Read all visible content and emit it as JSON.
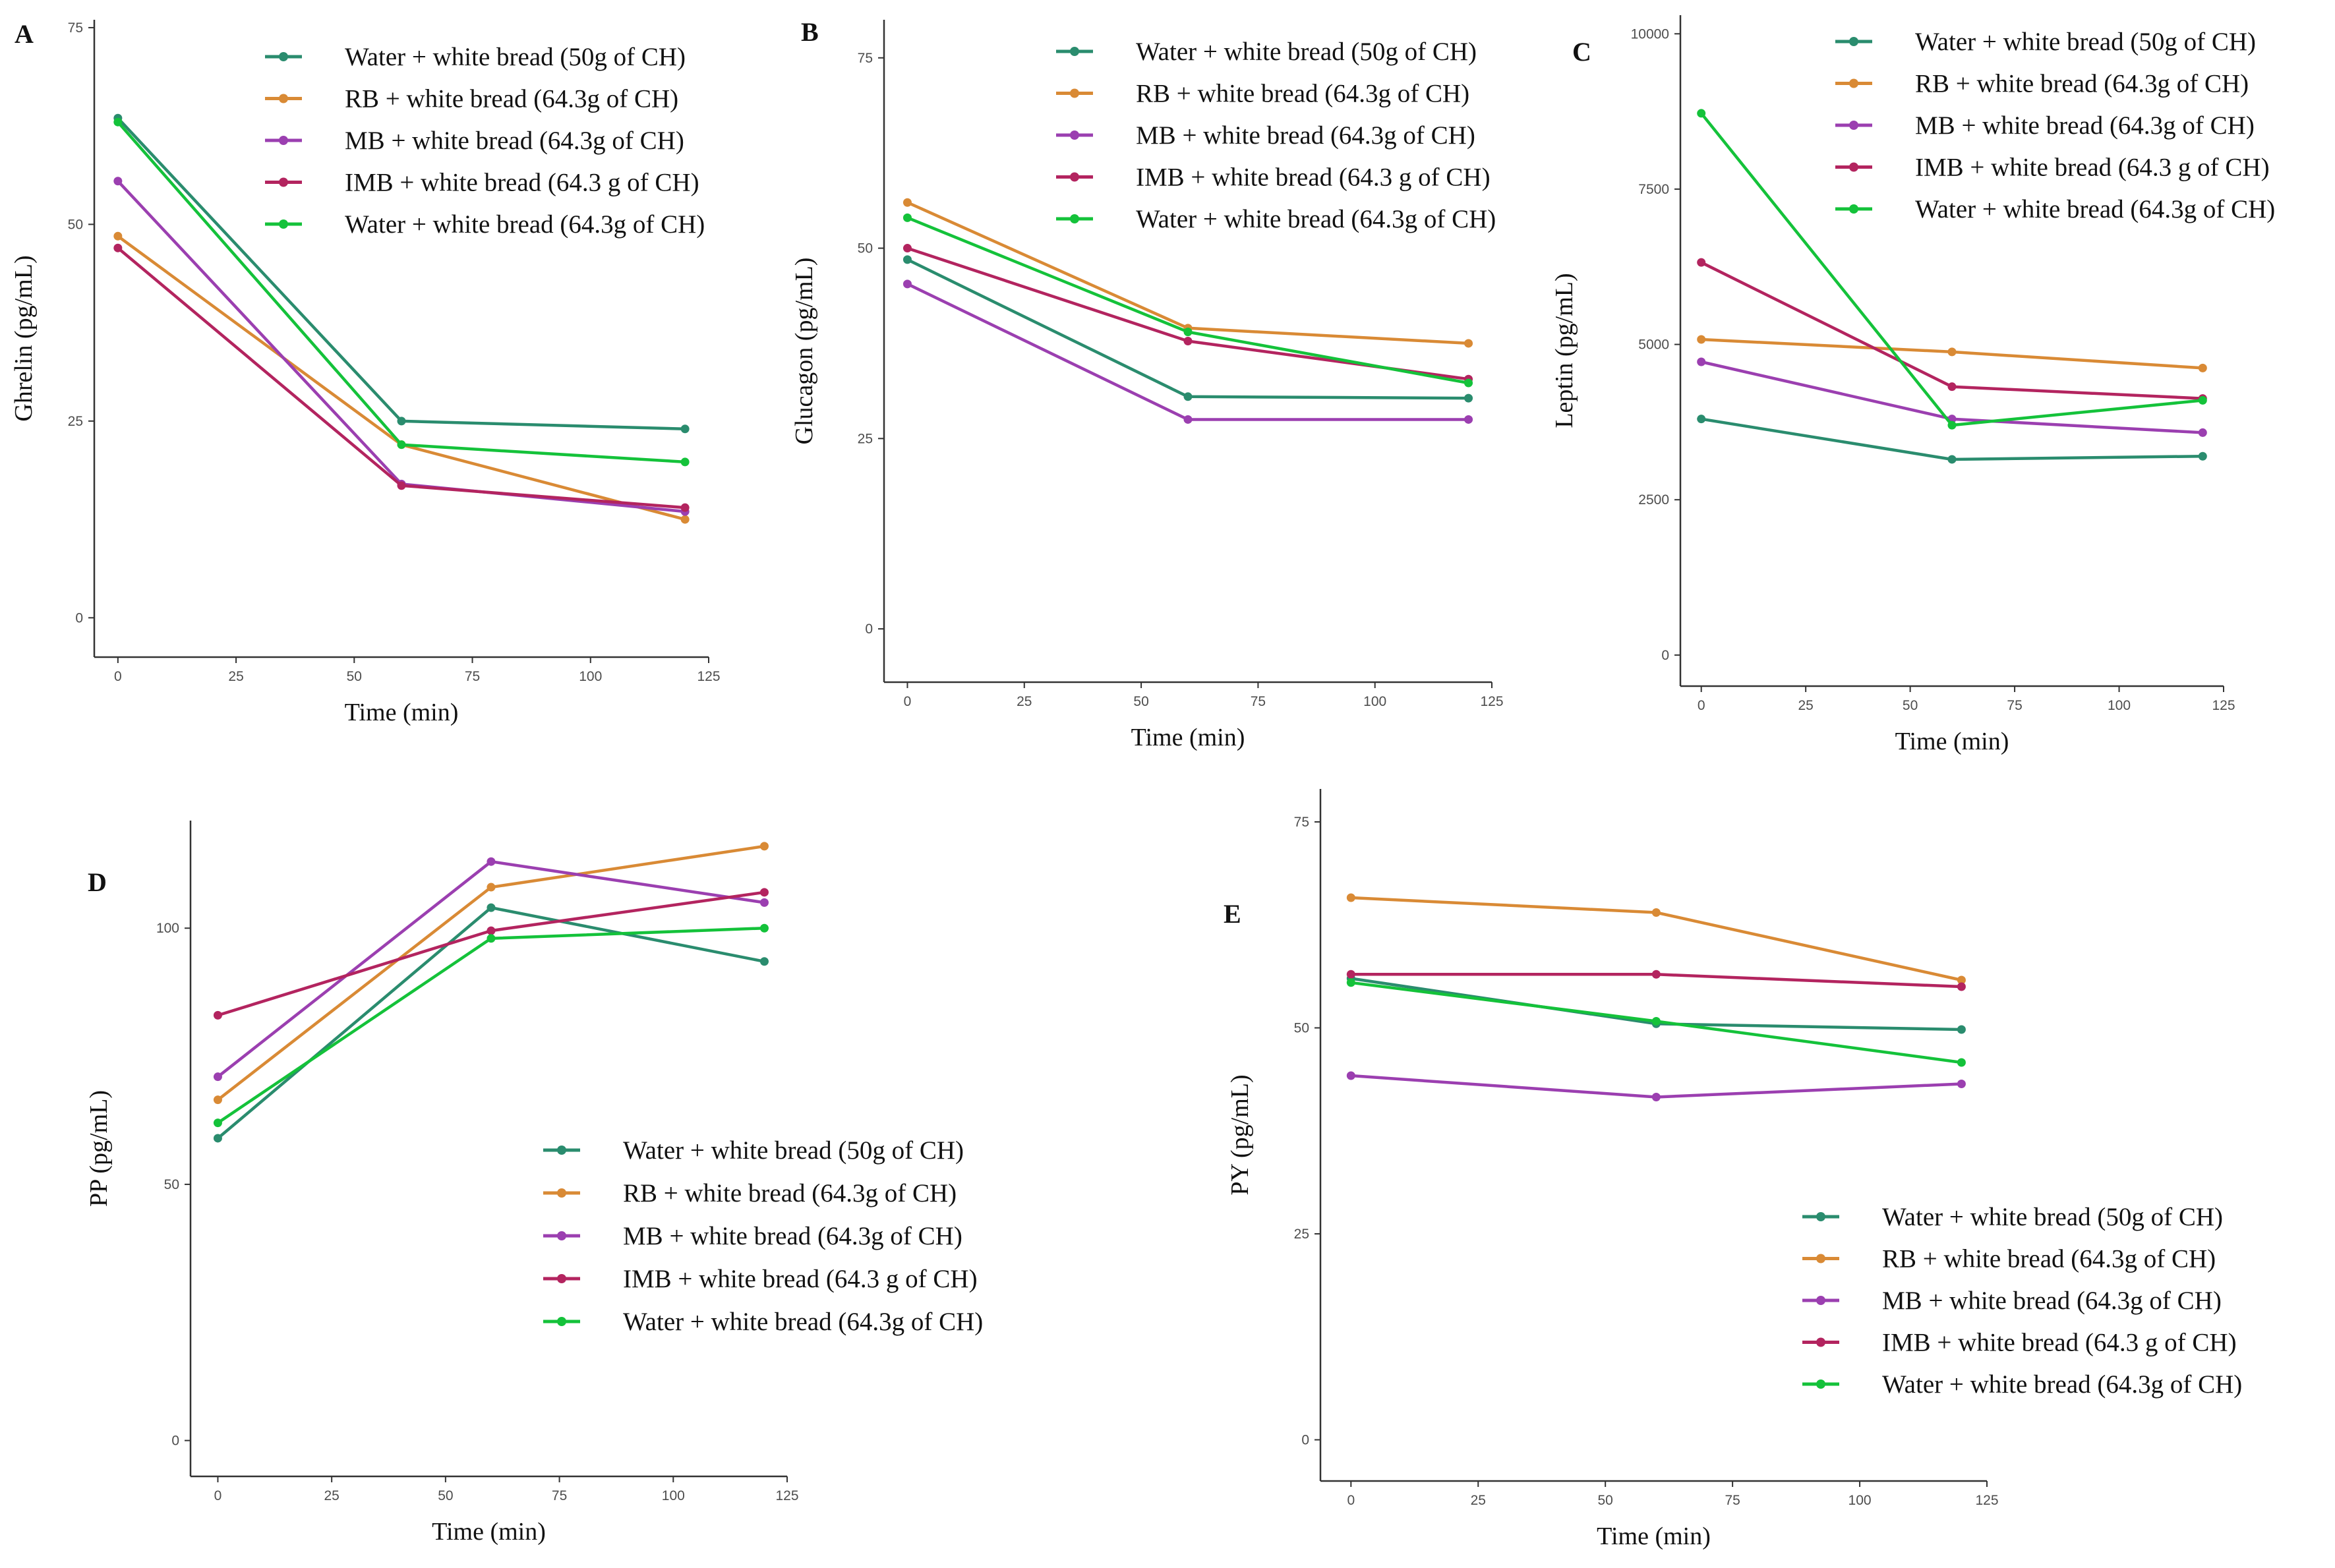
{
  "figure": {
    "colors": {
      "water50": "#2a8c6e",
      "rb": "#d98a35",
      "mb": "#9b3fb0",
      "imb": "#b3245f",
      "water643": "#14c23a"
    }
  },
  "chart_data": [
    {
      "type": "line",
      "panel_label": "A",
      "title": "",
      "xlabel": "Time  (min)",
      "ylabel": "Ghrelin  (pg/mL)",
      "x": [
        0,
        60,
        120
      ],
      "xlim": [
        -5,
        125
      ],
      "ylim": [
        -5,
        76
      ],
      "xticks": [
        0,
        25,
        50,
        75,
        100,
        125
      ],
      "yticks": [
        0,
        25,
        50,
        75
      ],
      "legend_position": "top-right",
      "series": [
        {
          "name": "Water + white  bread (50g of CH)",
          "color": "#2a8c6e",
          "values": [
            63.5,
            25,
            24
          ]
        },
        {
          "name": "RB + white  bread (64.3g of CH)",
          "color": "#d98a35",
          "values": [
            48.5,
            22,
            12.5
          ]
        },
        {
          "name": "MB + white  bread (64.3g of CH)",
          "color": "#9b3fb0",
          "values": [
            55.5,
            17,
            13.5
          ]
        },
        {
          "name": "IMB + white  bread (64.3 g of CH)",
          "color": "#b3245f",
          "values": [
            47,
            16.8,
            14
          ]
        },
        {
          "name": "Water + white  bread (64.3g of CH)",
          "color": "#14c23a",
          "values": [
            63,
            22,
            19.8
          ]
        }
      ]
    },
    {
      "type": "line",
      "panel_label": "B",
      "title": "",
      "xlabel": "Time  (min)",
      "ylabel": "Glucagon  (pg/mL)",
      "x": [
        0,
        60,
        120
      ],
      "xlim": [
        -5,
        125
      ],
      "ylim": [
        -7,
        80
      ],
      "xticks": [
        0,
        25,
        50,
        75,
        100,
        125
      ],
      "yticks": [
        0,
        25,
        50,
        75
      ],
      "legend_position": "top-right",
      "series": [
        {
          "name": "Water + white  bread (50g of CH)",
          "color": "#2a8c6e",
          "values": [
            48.5,
            30.5,
            30.3
          ]
        },
        {
          "name": "RB + white  bread (64.3g of CH)",
          "color": "#d98a35",
          "values": [
            56,
            39.5,
            37.5
          ]
        },
        {
          "name": "MB + white  bread (64.3g of CH)",
          "color": "#9b3fb0",
          "values": [
            45.3,
            27.5,
            27.5
          ]
        },
        {
          "name": "IMB + white  bread (64.3 g of CH)",
          "color": "#b3245f",
          "values": [
            50,
            37.8,
            32.8
          ]
        },
        {
          "name": "Water + white  bread (64.3g of CH)",
          "color": "#14c23a",
          "values": [
            54,
            39,
            32.3
          ]
        }
      ]
    },
    {
      "type": "line",
      "panel_label": "C",
      "title": "",
      "xlabel": "Time  (min)",
      "ylabel": "Leptin  (pg/mL)",
      "x": [
        0,
        60,
        120
      ],
      "xlim": [
        -5,
        125
      ],
      "ylim": [
        -500,
        10300
      ],
      "xticks": [
        0,
        25,
        50,
        75,
        100,
        125
      ],
      "yticks": [
        0,
        2500,
        5000,
        7500,
        10000
      ],
      "legend_position": "top-right",
      "series": [
        {
          "name": "Water + white  bread (50g of CH)",
          "color": "#2a8c6e",
          "values": [
            3800,
            3150,
            3200
          ]
        },
        {
          "name": "RB + white  bread (64.3g of CH)",
          "color": "#d98a35",
          "values": [
            5080,
            4880,
            4620
          ]
        },
        {
          "name": "MB + white  bread (64.3g of CH)",
          "color": "#9b3fb0",
          "values": [
            4720,
            3800,
            3580
          ]
        },
        {
          "name": "IMB + white  bread (64.3 g of CH)",
          "color": "#b3245f",
          "values": [
            6320,
            4320,
            4130
          ]
        },
        {
          "name": "Water + white  bread (64.3g of CH)",
          "color": "#14c23a",
          "values": [
            8720,
            3700,
            4100
          ]
        }
      ]
    },
    {
      "type": "line",
      "panel_label": "D",
      "title": "",
      "xlabel": "Time  (min)",
      "ylabel": "PP (pg/mL)",
      "x": [
        0,
        60,
        120
      ],
      "xlim": [
        -6,
        125
      ],
      "ylim": [
        -7,
        121
      ],
      "xticks": [
        0,
        25,
        50,
        75,
        100,
        125
      ],
      "yticks": [
        0,
        50,
        100
      ],
      "legend_position": "bottom-right",
      "series": [
        {
          "name": "Water + white  bread (50g of CH)",
          "color": "#2a8c6e",
          "values": [
            59,
            104,
            93.5
          ]
        },
        {
          "name": "RB + white  bread (64.3g of CH)",
          "color": "#d98a35",
          "values": [
            66.5,
            108,
            116
          ]
        },
        {
          "name": "MB + white  bread (64.3g of CH)",
          "color": "#9b3fb0",
          "values": [
            71,
            113,
            105
          ]
        },
        {
          "name": "IMB + white  bread (64.3 g of CH)",
          "color": "#b3245f",
          "values": [
            83,
            99.5,
            107
          ]
        },
        {
          "name": "Water + white  bread (64.3g of CH)",
          "color": "#14c23a",
          "values": [
            62,
            98,
            100
          ]
        }
      ]
    },
    {
      "type": "line",
      "panel_label": "E",
      "title": "",
      "xlabel": "Time  (min)",
      "ylabel": "PY  (pg/mL)",
      "x": [
        0,
        60,
        120
      ],
      "xlim": [
        -6,
        125
      ],
      "ylim": [
        -5,
        79
      ],
      "xticks": [
        0,
        25,
        50,
        75,
        100,
        125
      ],
      "yticks": [
        0,
        25,
        50,
        75
      ],
      "legend_position": "bottom-right",
      "series": [
        {
          "name": "Water + white  bread (50g of CH)",
          "color": "#2a8c6e",
          "values": [
            56,
            50.5,
            49.8
          ]
        },
        {
          "name": "RB + white  bread (64.3g of CH)",
          "color": "#d98a35",
          "values": [
            65.8,
            64,
            55.8
          ]
        },
        {
          "name": "MB + white  bread (64.3g of CH)",
          "color": "#9b3fb0",
          "values": [
            44.2,
            41.6,
            43.2
          ]
        },
        {
          "name": "IMB + white  bread (64.3 g of CH)",
          "color": "#b3245f",
          "values": [
            56.5,
            56.5,
            55
          ]
        },
        {
          "name": "Water + white  bread (64.3g of CH)",
          "color": "#14c23a",
          "values": [
            55.5,
            50.8,
            45.8
          ]
        }
      ]
    }
  ]
}
